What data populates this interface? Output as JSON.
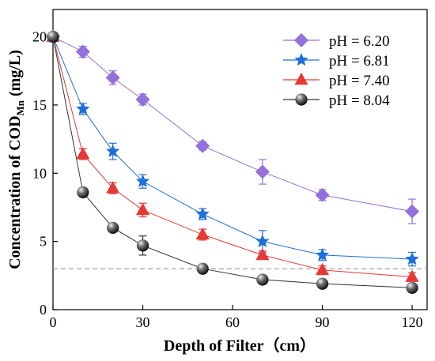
{
  "chart_data": {
    "type": "line",
    "title": "",
    "xlabel": "Depth of Filter（cm）",
    "ylabel_prefix": "Concentration of COD",
    "ylabel_sub": "Mn",
    "ylabel_suffix": " (mg/L)",
    "xlim": [
      0,
      125
    ],
    "ylim": [
      0,
      22
    ],
    "xticks": [
      0,
      30,
      60,
      90,
      120
    ],
    "yticks": [
      0,
      5,
      10,
      15,
      20
    ],
    "reference_line": {
      "y": 3,
      "style": "dashed",
      "color": "#999999"
    },
    "legend_position": "top-right",
    "series": [
      {
        "name": "pH = 6.20",
        "color": "#9370DB",
        "marker": "diamond",
        "x": [
          0,
          10,
          20,
          30,
          50,
          70,
          90,
          120
        ],
        "y": [
          20,
          18.9,
          17,
          15.4,
          12,
          10.1,
          8.4,
          7.2
        ],
        "err": [
          0.2,
          0.4,
          0.5,
          0.4,
          0.3,
          0.9,
          0.4,
          0.9
        ]
      },
      {
        "name": "pH = 6.81",
        "color": "#1E6FD9",
        "marker": "star",
        "x": [
          0,
          10,
          20,
          30,
          50,
          70,
          90,
          120
        ],
        "y": [
          20,
          14.7,
          11.6,
          9.4,
          7,
          5,
          4,
          3.7
        ],
        "err": [
          0.2,
          0.4,
          0.6,
          0.5,
          0.4,
          0.8,
          0.4,
          0.5
        ]
      },
      {
        "name": "pH = 7.40",
        "color": "#E53935",
        "marker": "triangle",
        "x": [
          0,
          10,
          20,
          30,
          50,
          70,
          90,
          120
        ],
        "y": [
          20,
          11.4,
          8.9,
          7.3,
          5.5,
          4,
          2.9,
          2.4
        ],
        "err": [
          0.2,
          0.4,
          0.4,
          0.5,
          0.4,
          0.3,
          0.3,
          0.3
        ]
      },
      {
        "name": "pH = 8.04",
        "color": "#333333",
        "marker": "sphere",
        "x": [
          0,
          10,
          20,
          30,
          50,
          70,
          90,
          120
        ],
        "y": [
          20,
          8.6,
          6,
          4.7,
          3,
          2.2,
          1.9,
          1.6
        ],
        "err": [
          0.2,
          0.3,
          0.3,
          0.7,
          0.3,
          0.2,
          0.2,
          0.2
        ]
      }
    ]
  }
}
